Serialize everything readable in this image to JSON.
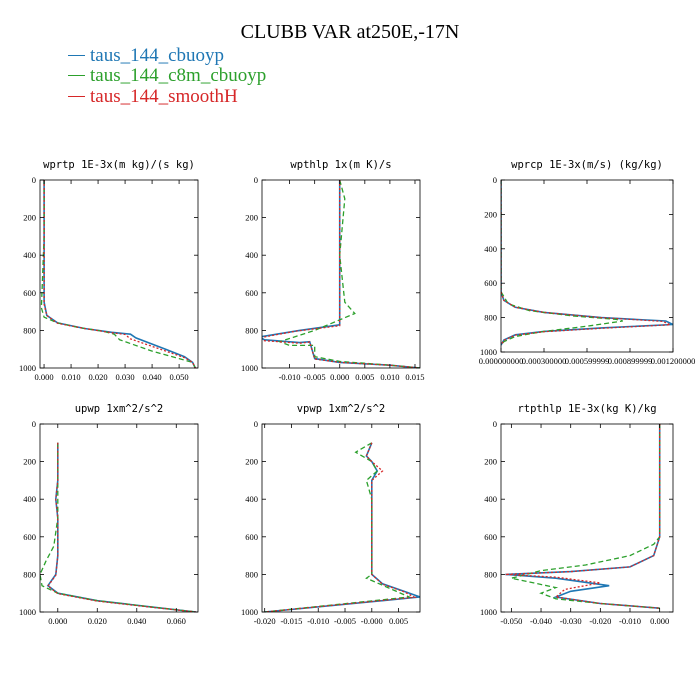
{
  "figure": {
    "title": "CLUBB VAR at250E,-17N",
    "legend": [
      {
        "label": "taus_144_cbuoyp",
        "color": "#1f77b4",
        "dash": "solid"
      },
      {
        "label": "taus_144_c8m_cbuoyp",
        "color": "#2ca02c",
        "dash": "dashed"
      },
      {
        "label": "taus_144_smoothH",
        "color": "#d62728",
        "dash": "dotted"
      }
    ]
  },
  "chart_data": [
    {
      "type": "line",
      "title": "wprtp  1E-3x(m kg)/(s kg)",
      "xlim": [
        -0.0015,
        0.057
      ],
      "ylim": [
        1000,
        0
      ],
      "xticks": [
        0.0,
        0.01,
        0.02,
        0.03,
        0.04,
        0.05
      ],
      "xticklabels": [
        "0.000",
        "0.010",
        "0.020",
        "0.030",
        "0.040",
        "0.050"
      ],
      "yticks": [
        0,
        200,
        400,
        600,
        800,
        1000
      ],
      "yticklabels": [
        "0",
        "200",
        "400",
        "600",
        "800",
        "1000"
      ],
      "series": [
        {
          "name": "taus_144_cbuoyp",
          "x": [
            0,
            0,
            0,
            0.001,
            0.005,
            0.015,
            0.025,
            0.032,
            0.034,
            0.045,
            0.052,
            0.055,
            0.056
          ],
          "y": [
            0,
            300,
            650,
            720,
            760,
            790,
            810,
            820,
            840,
            900,
            940,
            970,
            1000
          ]
        },
        {
          "name": "taus_144_c8m_cbuoyp",
          "x": [
            0,
            0,
            -0.001,
            0.0,
            0.005,
            0.013,
            0.022,
            0.026,
            0.028,
            0.04,
            0.05,
            0.055,
            0.056
          ],
          "y": [
            0,
            300,
            680,
            730,
            760,
            785,
            805,
            820,
            850,
            910,
            950,
            970,
            1000
          ]
        },
        {
          "name": "taus_144_smoothH",
          "x": [
            0,
            0,
            0,
            0.001,
            0.005,
            0.015,
            0.024,
            0.03,
            0.032,
            0.044,
            0.052,
            0.055,
            0.056
          ],
          "y": [
            0,
            300,
            660,
            720,
            762,
            790,
            810,
            822,
            845,
            905,
            945,
            970,
            1000
          ]
        }
      ]
    },
    {
      "type": "line",
      "title": "wpthlp  1x(m K)/s",
      "xlim": [
        -0.0155,
        0.016
      ],
      "ylim": [
        1000,
        0
      ],
      "xticks": [
        -0.01,
        -0.005,
        0.0,
        0.005,
        0.01,
        0.015
      ],
      "xticklabels": [
        "-0.010",
        "-0.005",
        "0.000",
        "0.005",
        "0.010",
        "0.015"
      ],
      "yticks": [
        0,
        200,
        400,
        600,
        800,
        1000
      ],
      "yticklabels": [
        "0",
        "200",
        "400",
        "600",
        "800",
        "1000"
      ],
      "series": [
        {
          "name": "taus_144_cbuoyp",
          "x": [
            0.0,
            0.0,
            0.0,
            0.0,
            0.0,
            -0.008,
            -0.016,
            -0.015,
            -0.008,
            -0.006,
            -0.005,
            0.0,
            0.01,
            0.016
          ],
          "y": [
            0,
            100,
            400,
            700,
            770,
            800,
            835,
            850,
            865,
            860,
            950,
            970,
            985,
            1000
          ]
        },
        {
          "name": "taus_144_c8m_cbuoyp",
          "x": [
            0.0,
            0.001,
            0.0,
            0.001,
            0.003,
            -0.005,
            -0.012,
            -0.01,
            -0.005,
            -0.005,
            0.0,
            0.01,
            0.016
          ],
          "y": [
            0,
            100,
            400,
            650,
            710,
            800,
            860,
            880,
            880,
            940,
            965,
            985,
            1000
          ]
        },
        {
          "name": "taus_144_smoothH",
          "x": [
            0.0,
            0.0,
            0.0,
            0.0,
            0.0,
            -0.009,
            -0.016,
            -0.015,
            -0.008,
            -0.006,
            -0.005,
            0.0,
            0.01,
            0.016
          ],
          "y": [
            0,
            100,
            400,
            700,
            775,
            805,
            840,
            855,
            868,
            862,
            952,
            970,
            985,
            1000
          ]
        }
      ]
    },
    {
      "type": "line",
      "title": "wprcp  1E-3x(m/s) (kg/kg)",
      "xlim": [
        0.0,
        0.0012
      ],
      "ylim": [
        1000,
        0
      ],
      "xticks": [
        0.0,
        0.0003,
        0.0006,
        0.0009,
        0.0012
      ],
      "xticklabels": [
        "0.000000000",
        "0.000300000",
        "0.000599999",
        "0.000899999",
        "0.001200000"
      ],
      "yticks": [
        0,
        200,
        400,
        600,
        800,
        1000
      ],
      "yticklabels": [
        "0",
        "200",
        "400",
        "600",
        "800",
        "1000"
      ],
      "series": [
        {
          "name": "taus_144_cbuoyp",
          "x": [
            0,
            0,
            2e-05,
            0.0001,
            0.0003,
            0.0007,
            0.00115,
            0.0012,
            0.0007,
            0.0003,
            0.0001,
            2e-05,
            0
          ],
          "y": [
            0,
            650,
            700,
            740,
            770,
            800,
            820,
            840,
            860,
            880,
            900,
            930,
            960
          ]
        },
        {
          "name": "taus_144_c8m_cbuoyp",
          "x": [
            0,
            0,
            5e-05,
            0.0002,
            0.0005,
            0.0008,
            0.00085,
            0.0006,
            0.0003,
            0.0001,
            2e-05,
            0
          ],
          "y": [
            0,
            650,
            720,
            760,
            790,
            810,
            820,
            850,
            880,
            910,
            940,
            960
          ]
        },
        {
          "name": "taus_144_smoothH",
          "x": [
            0,
            0,
            2e-05,
            0.0001,
            0.0003,
            0.0007,
            0.00113,
            0.00118,
            0.0007,
            0.0003,
            0.0001,
            2e-05,
            0
          ],
          "y": [
            0,
            650,
            700,
            740,
            770,
            800,
            822,
            842,
            862,
            882,
            902,
            932,
            960
          ]
        }
      ]
    },
    {
      "type": "line",
      "title": "upwp  1xm^2/s^2",
      "xlim": [
        -0.009,
        0.071
      ],
      "ylim": [
        1000,
        0
      ],
      "xticks": [
        0.0,
        0.02,
        0.04,
        0.06
      ],
      "xticklabels": [
        "0.000",
        "0.020",
        "0.040",
        "0.060"
      ],
      "yticks": [
        0,
        200,
        400,
        600,
        800,
        1000
      ],
      "yticklabels": [
        "0",
        "200",
        "400",
        "600",
        "800",
        "1000"
      ],
      "series": [
        {
          "name": "taus_144_cbuoyp",
          "x": [
            0,
            0,
            0.0,
            -0.001,
            0.0,
            0.0,
            0.0,
            -0.001,
            -0.005,
            0.0,
            0.02,
            0.045,
            0.07
          ],
          "y": [
            100,
            200,
            300,
            400,
            500,
            600,
            700,
            800,
            860,
            900,
            940,
            970,
            1000
          ]
        },
        {
          "name": "taus_144_c8m_cbuoyp",
          "x": [
            0,
            0.0,
            0.0,
            0.0,
            0.0,
            -0.002,
            -0.006,
            -0.009,
            -0.008,
            0.0,
            0.02,
            0.045,
            0.07
          ],
          "y": [
            100,
            200,
            300,
            400,
            500,
            650,
            730,
            800,
            860,
            900,
            940,
            970,
            1000
          ]
        },
        {
          "name": "taus_144_smoothH",
          "x": [
            0,
            0,
            0.0,
            -0.001,
            0.0,
            0.0,
            0.0,
            -0.001,
            -0.005,
            0.0,
            0.02,
            0.045,
            0.07
          ],
          "y": [
            100,
            200,
            300,
            400,
            500,
            600,
            700,
            805,
            862,
            902,
            942,
            972,
            1000
          ]
        }
      ]
    },
    {
      "type": "line",
      "title": "vpwp  1xm^2/s^2",
      "xlim": [
        -0.0205,
        0.009
      ],
      "ylim": [
        1000,
        0
      ],
      "xticks": [
        -0.02,
        -0.015,
        -0.01,
        -0.005,
        0.0,
        0.005
      ],
      "xticklabels": [
        "-0.020",
        "-0.015",
        "-0.010",
        "-0.005",
        "-0.000",
        "0.005"
      ],
      "yticks": [
        0,
        200,
        400,
        600,
        800,
        1000
      ],
      "yticklabels": [
        "0",
        "200",
        "400",
        "600",
        "800",
        "1000"
      ],
      "series": [
        {
          "name": "taus_144_cbuoyp",
          "x": [
            0.0,
            -0.001,
            0.0,
            0.001,
            0.0,
            0.0,
            0.0,
            0.0,
            0.002,
            0.006,
            0.009,
            -0.02
          ],
          "y": [
            100,
            170,
            200,
            250,
            300,
            500,
            700,
            800,
            850,
            890,
            920,
            1000
          ]
        },
        {
          "name": "taus_144_c8m_cbuoyp",
          "x": [
            0.0,
            -0.003,
            0.0,
            0.001,
            -0.001,
            0.0,
            0.0,
            0.0,
            0.0,
            -0.001,
            0.003,
            0.007,
            -0.02
          ],
          "y": [
            100,
            150,
            200,
            250,
            300,
            400,
            500,
            700,
            800,
            820,
            870,
            920,
            1000
          ]
        },
        {
          "name": "taus_144_smoothH",
          "x": [
            0.0,
            -0.001,
            0.0,
            0.002,
            0.0,
            0.0,
            0.0,
            0.0,
            0.002,
            0.006,
            0.008,
            -0.02
          ],
          "y": [
            100,
            170,
            200,
            250,
            300,
            500,
            700,
            800,
            852,
            892,
            922,
            1000
          ]
        }
      ]
    },
    {
      "type": "line",
      "title": "rtpthlp  1E-3x(kg K)/kg",
      "xlim": [
        -0.0535,
        0.0045
      ],
      "ylim": [
        1000,
        0
      ],
      "xticks": [
        -0.05,
        -0.04,
        -0.03,
        -0.02,
        -0.01,
        0.0
      ],
      "xticklabels": [
        "-0.050",
        "-0.040",
        "-0.030",
        "-0.020",
        "-0.010",
        "0.000"
      ],
      "yticks": [
        0,
        200,
        400,
        600,
        800,
        1000
      ],
      "yticklabels": [
        "0",
        "200",
        "400",
        "600",
        "800",
        "1000"
      ],
      "series": [
        {
          "name": "taus_144_cbuoyp",
          "x": [
            0.0,
            0.0,
            -0.002,
            -0.01,
            -0.03,
            -0.052,
            -0.035,
            -0.017,
            -0.03,
            -0.035,
            -0.02,
            0.0
          ],
          "y": [
            0,
            600,
            700,
            760,
            785,
            800,
            820,
            860,
            890,
            920,
            955,
            980
          ]
        },
        {
          "name": "taus_144_c8m_cbuoyp",
          "x": [
            0.0,
            0.0,
            -0.002,
            -0.01,
            -0.025,
            -0.04,
            -0.05,
            -0.035,
            -0.04,
            -0.035,
            -0.02,
            0.0
          ],
          "y": [
            0,
            600,
            640,
            700,
            750,
            780,
            820,
            870,
            900,
            930,
            955,
            980
          ]
        },
        {
          "name": "taus_144_smoothH",
          "x": [
            0.0,
            0.0,
            -0.002,
            -0.01,
            -0.03,
            -0.052,
            -0.035,
            -0.02,
            -0.032,
            -0.035,
            -0.02,
            0.0
          ],
          "y": [
            0,
            600,
            700,
            760,
            785,
            800,
            815,
            845,
            880,
            920,
            955,
            980
          ]
        }
      ]
    }
  ]
}
